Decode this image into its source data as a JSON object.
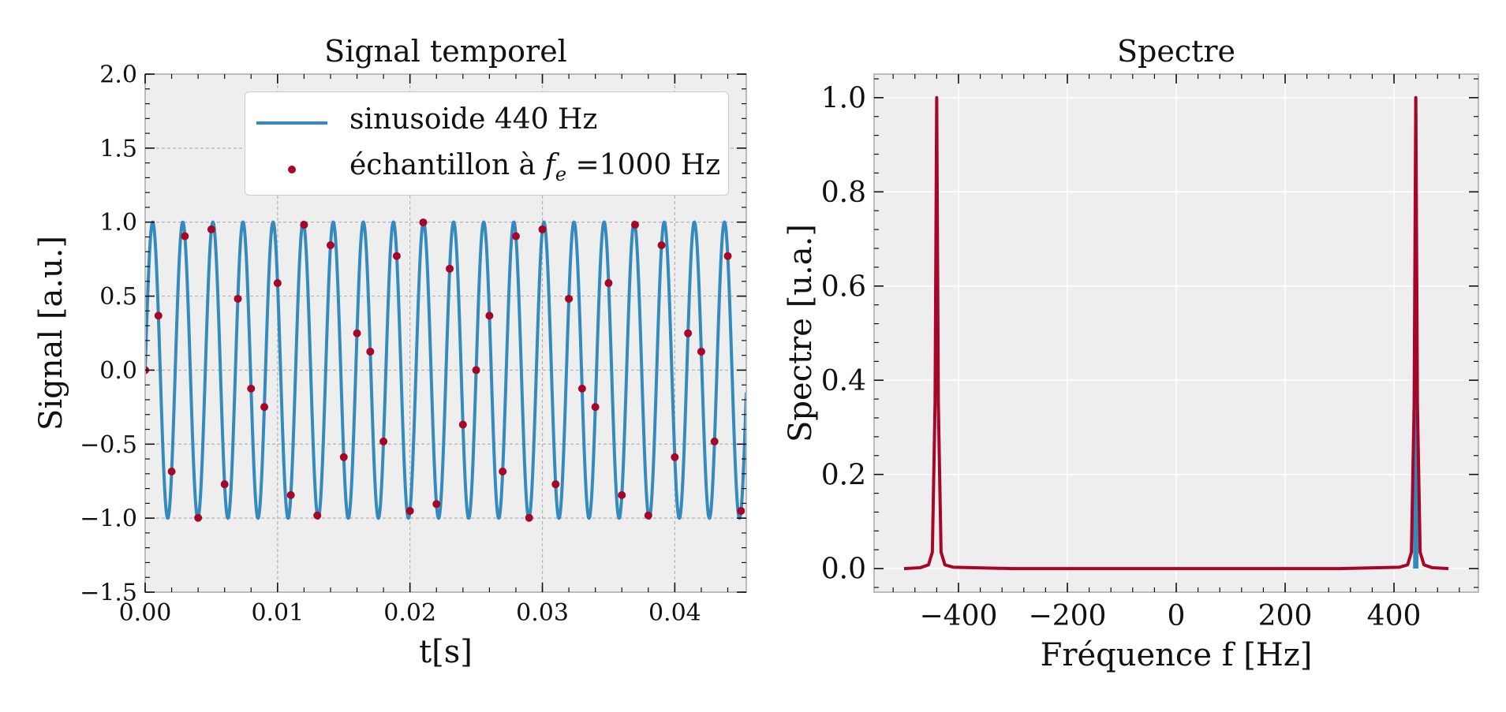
{
  "colors": {
    "sine": "#348abd",
    "samples": "#a60628",
    "spectrum_sine": "#348abd",
    "spectrum_sampled": "#a60628",
    "axes_bg": "#eeeeee"
  },
  "chart_data": [
    {
      "type": "line",
      "title": "Signal temporel",
      "xlabel": "t[s]",
      "ylabel": "Signal [a.u.]",
      "xlim": [
        0,
        0.0454
      ],
      "ylim": [
        -1.5,
        2.0
      ],
      "xticks": [
        0.0,
        0.01,
        0.02,
        0.03,
        0.04
      ],
      "xtick_labels": [
        "0.00",
        "0.01",
        "0.02",
        "0.03",
        "0.04"
      ],
      "yticks": [
        -1.5,
        -1.0,
        -0.5,
        0.0,
        0.5,
        1.0,
        1.5,
        2.0
      ],
      "ytick_labels": [
        "−1.5",
        "−1.0",
        "−0.5",
        "0.0",
        "0.5",
        "1.0",
        "1.5",
        "2.0"
      ],
      "grid": "dashed",
      "legend_position": "upper-right",
      "series": [
        {
          "name": "sinusoide 440 Hz",
          "kind": "line",
          "frequency_hz": 440,
          "amplitude": 1.0
        },
        {
          "name": "échantillon à fe =1000 Hz",
          "kind": "scatter",
          "sampling_hz": 1000,
          "x": [
            0.0,
            0.001,
            0.002,
            0.003,
            0.004,
            0.005,
            0.006,
            0.007,
            0.008,
            0.009,
            0.01,
            0.011,
            0.012,
            0.013,
            0.014,
            0.015,
            0.016,
            0.017,
            0.018,
            0.019,
            0.02,
            0.021,
            0.022,
            0.023,
            0.024,
            0.025,
            0.026,
            0.027,
            0.028,
            0.029,
            0.03,
            0.031,
            0.032,
            0.033,
            0.034,
            0.035,
            0.036,
            0.037,
            0.038,
            0.039,
            0.04,
            0.041,
            0.042,
            0.043,
            0.044,
            0.045
          ],
          "y": [
            0.0,
            0.368,
            -0.685,
            0.905,
            -0.998,
            0.951,
            -0.771,
            0.482,
            -0.125,
            -0.249,
            0.588,
            -0.844,
            0.982,
            -0.982,
            0.844,
            -0.588,
            0.249,
            0.125,
            -0.482,
            0.771,
            -0.951,
            0.998,
            -0.905,
            0.685,
            -0.368,
            0.0,
            0.368,
            -0.685,
            0.905,
            -0.998,
            0.951,
            -0.771,
            0.482,
            -0.125,
            -0.249,
            0.588,
            -0.844,
            0.982,
            -0.982,
            0.844,
            -0.588,
            0.249,
            0.125,
            -0.482,
            0.771,
            -0.951
          ]
        }
      ]
    },
    {
      "type": "line",
      "title": "Spectre",
      "xlabel": "Fréquence f [Hz]",
      "ylabel": "Spectre [u.a.]",
      "xlim": [
        -555,
        555
      ],
      "ylim": [
        -0.05,
        1.05
      ],
      "xticks": [
        -400,
        -200,
        0,
        200,
        400
      ],
      "xtick_labels": [
        "−400",
        "−200",
        "0",
        "200",
        "400"
      ],
      "yticks": [
        0.0,
        0.2,
        0.4,
        0.6,
        0.8,
        1.0
      ],
      "ytick_labels": [
        "0.0",
        "0.2",
        "0.4",
        "0.6",
        "0.8",
        "1.0"
      ],
      "grid": "solid",
      "series": [
        {
          "kind": "line",
          "color_key": "spectrum_sine",
          "x": [
            438,
            440,
            442
          ],
          "y": [
            0.0,
            1.0,
            0.0
          ]
        },
        {
          "kind": "line",
          "color_key": "spectrum_sampled",
          "x": [
            -500,
            -470,
            -455,
            -448,
            -443,
            -440,
            -437,
            -432,
            -425,
            -410,
            -300,
            0,
            300,
            410,
            425,
            432,
            437,
            440,
            443,
            448,
            455,
            470,
            500
          ],
          "y": [
            0.0,
            0.002,
            0.008,
            0.035,
            0.35,
            1.0,
            0.35,
            0.035,
            0.008,
            0.003,
            0.0,
            0.0,
            0.0,
            0.003,
            0.008,
            0.035,
            0.35,
            1.0,
            0.35,
            0.035,
            0.008,
            0.002,
            0.0
          ]
        }
      ]
    }
  ],
  "legend": {
    "entries": [
      {
        "label": "sinusoide 440 Hz"
      },
      {
        "label": "échantillon à fe =1000 Hz"
      }
    ]
  }
}
